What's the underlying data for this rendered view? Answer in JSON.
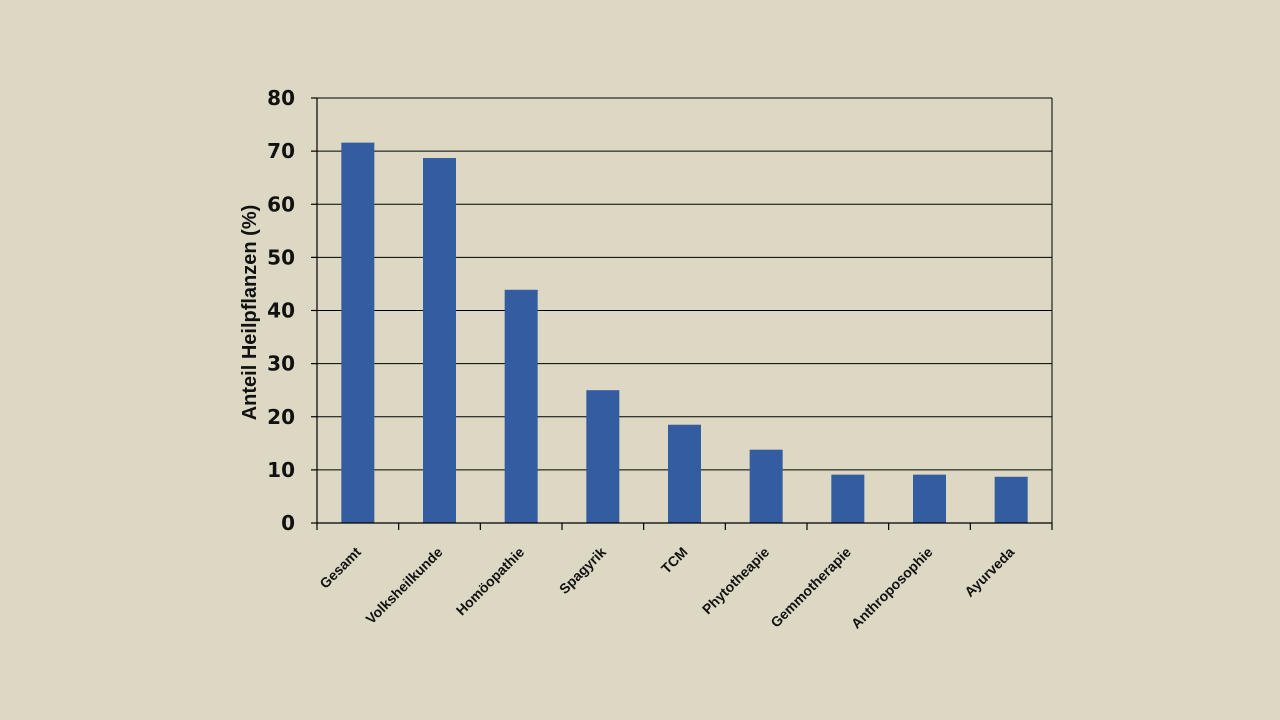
{
  "chart_data": {
    "type": "bar",
    "categories": [
      "Gesamt",
      "Volksheilkunde",
      "Homöopathie",
      "Spagyrik",
      "TCM",
      "Phytotheapie",
      "Gemmotherapie",
      "Anthroposophie",
      "Ayurveda"
    ],
    "values": [
      71.6,
      68.7,
      43.9,
      25.0,
      18.5,
      13.8,
      9.1,
      9.1,
      8.7
    ],
    "title": "",
    "xlabel": "",
    "ylabel": "Anteil  Heilpflanzen  (%)",
    "ylim": [
      0,
      80
    ],
    "yticks": [
      0,
      10,
      20,
      30,
      40,
      50,
      60,
      70,
      80
    ],
    "grid": true,
    "legend": "none",
    "colors": {
      "bar": "#345ca0",
      "background": "#ddd8c3",
      "axis": "#000000",
      "text": "#111111"
    }
  }
}
